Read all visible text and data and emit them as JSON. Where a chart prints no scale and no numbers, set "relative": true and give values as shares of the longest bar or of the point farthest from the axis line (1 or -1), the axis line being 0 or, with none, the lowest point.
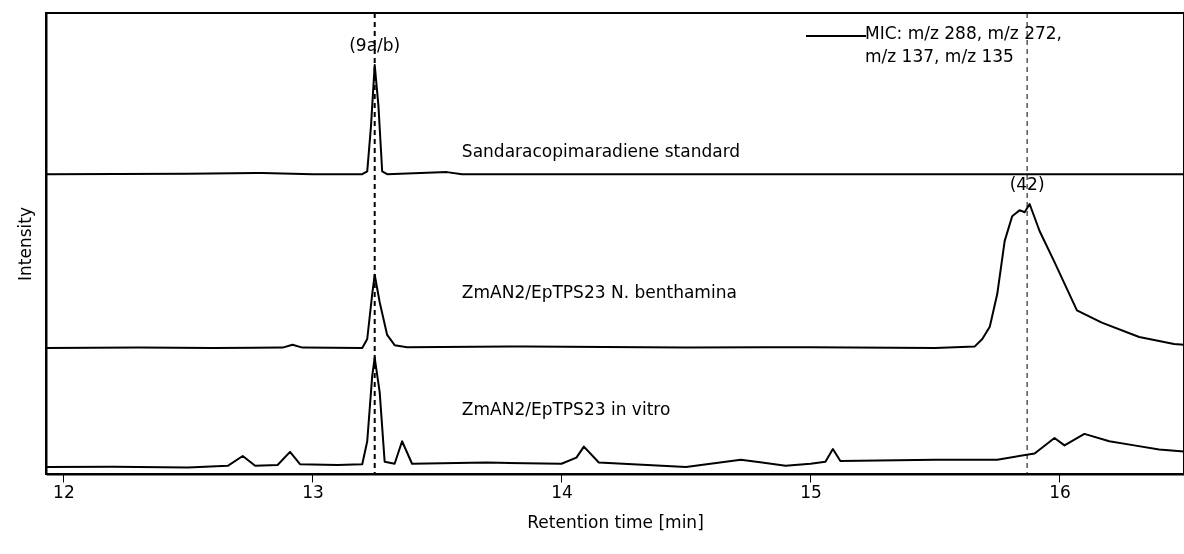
{
  "chart_data": {
    "type": "line",
    "relative": true,
    "xlabel": "Retention time [min]",
    "ylabel": "Intensity",
    "xlim": [
      11.93,
      16.5
    ],
    "xticks": [
      12,
      13,
      14,
      15,
      16
    ],
    "grid": false,
    "line_style": "solid",
    "annotations": [
      {
        "text": "(9a/b)",
        "x": 13.25,
        "y": 1.0
      },
      {
        "text": "(42)",
        "x": 15.87,
        "y": 0.66
      },
      "MIC: m/z 288, m/z 272, m/z 137, m/z 135"
    ],
    "ref_lines": [
      {
        "axis": "x",
        "value": 13.25,
        "line_style": "dashed"
      },
      {
        "axis": "x",
        "value": 15.87,
        "line_style": "dashed"
      }
    ],
    "series": [
      {
        "name": "Sandaracopimaradiene standard",
        "color": "#000000",
        "x": [
          11.93,
          12.5,
          12.8,
          13.0,
          13.2,
          13.22,
          13.235,
          13.25,
          13.265,
          13.28,
          13.3,
          13.54,
          13.6,
          14.0,
          15.0,
          16.0,
          16.5
        ],
        "values": [
          0.733,
          0.734,
          0.736,
          0.733,
          0.733,
          0.74,
          0.85,
          1.0,
          0.9,
          0.74,
          0.733,
          0.738,
          0.733,
          0.733,
          0.733,
          0.733,
          0.733
        ]
      },
      {
        "name": "ZmAN2/EpTPS23 N. benthamina",
        "color": "#000000",
        "x": [
          11.93,
          12.3,
          12.6,
          12.88,
          12.92,
          12.96,
          13.2,
          13.22,
          13.24,
          13.25,
          13.27,
          13.3,
          13.33,
          13.38,
          13.85,
          14.5,
          15.0,
          15.5,
          15.66,
          15.69,
          15.72,
          15.75,
          15.78,
          15.81,
          15.84,
          15.86,
          15.88,
          15.92,
          15.98,
          16.07,
          16.17,
          16.32,
          16.46,
          16.5
        ],
        "values": [
          0.308,
          0.309,
          0.308,
          0.309,
          0.316,
          0.309,
          0.308,
          0.33,
          0.44,
          0.487,
          0.42,
          0.34,
          0.315,
          0.31,
          0.312,
          0.309,
          0.31,
          0.308,
          0.312,
          0.33,
          0.36,
          0.44,
          0.57,
          0.63,
          0.645,
          0.64,
          0.66,
          0.594,
          0.518,
          0.4,
          0.37,
          0.335,
          0.318,
          0.316
        ]
      },
      {
        "name": "ZmAN2/EpTPS23 in vitro",
        "color": "#000000",
        "x": [
          11.93,
          12.2,
          12.5,
          12.66,
          12.72,
          12.77,
          12.86,
          12.91,
          12.95,
          13.1,
          13.2,
          13.22,
          13.24,
          13.25,
          13.27,
          13.29,
          13.33,
          13.36,
          13.4,
          13.7,
          14.0,
          14.06,
          14.09,
          14.15,
          14.5,
          14.72,
          14.9,
          15.0,
          15.06,
          15.09,
          15.12,
          15.5,
          15.75,
          15.9,
          15.98,
          16.02,
          16.1,
          16.2,
          16.3,
          16.4,
          16.5
        ],
        "values": [
          0.017,
          0.018,
          0.016,
          0.02,
          0.044,
          0.02,
          0.022,
          0.054,
          0.024,
          0.022,
          0.024,
          0.08,
          0.24,
          0.284,
          0.2,
          0.03,
          0.025,
          0.08,
          0.025,
          0.028,
          0.025,
          0.04,
          0.067,
          0.028,
          0.017,
          0.035,
          0.02,
          0.025,
          0.03,
          0.061,
          0.032,
          0.035,
          0.035,
          0.05,
          0.088,
          0.07,
          0.098,
          0.08,
          0.07,
          0.06,
          0.055
        ]
      }
    ]
  }
}
